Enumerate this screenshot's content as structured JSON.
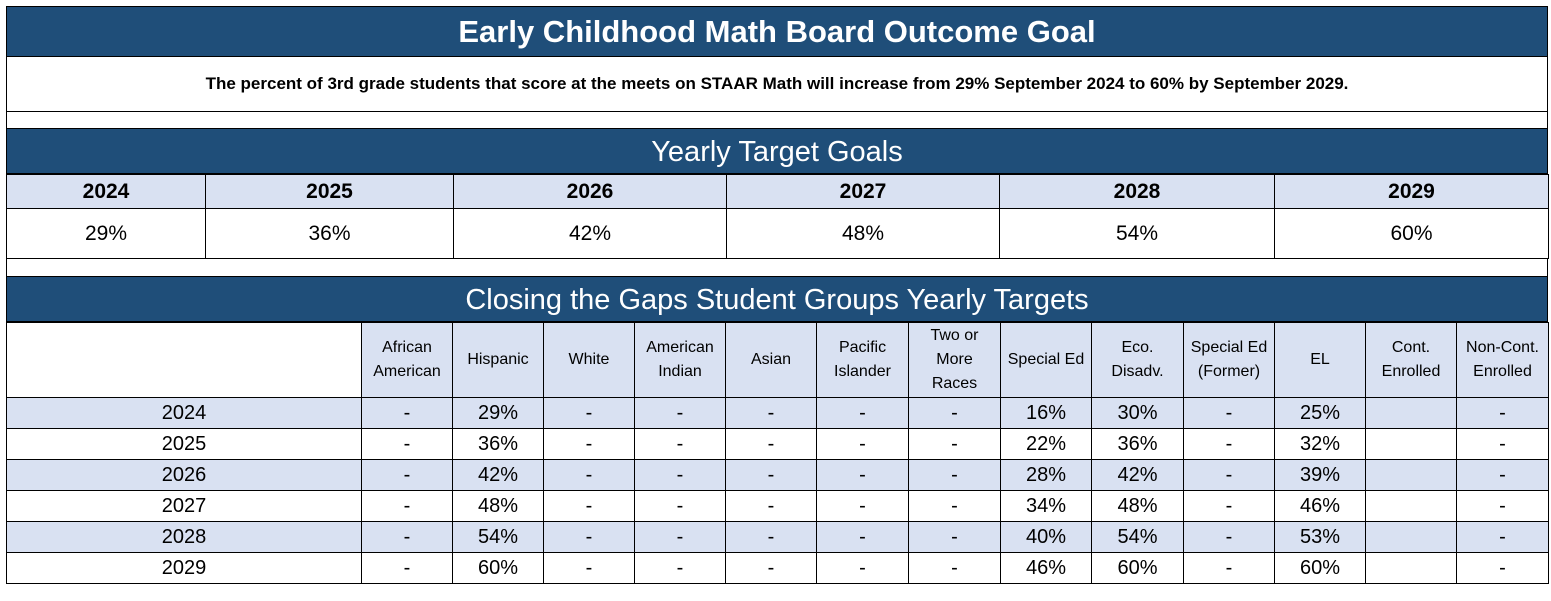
{
  "title": "Early Childhood Math Board Outcome Goal",
  "goal_statement": "The percent of 3rd grade students that score at the meets on STAAR Math will increase from 29% September 2024 to 60% by September 2029.",
  "yearly_targets": {
    "heading": "Yearly Target Goals",
    "years": [
      "2024",
      "2025",
      "2026",
      "2027",
      "2028",
      "2029"
    ],
    "values": [
      "29%",
      "36%",
      "42%",
      "48%",
      "54%",
      "60%"
    ]
  },
  "student_groups": {
    "heading": "Closing the Gaps Student Groups Yearly Targets",
    "columns": [
      [
        "African",
        "American"
      ],
      [
        "Hispanic"
      ],
      [
        "White"
      ],
      [
        "American",
        "Indian"
      ],
      [
        "Asian"
      ],
      [
        "Pacific",
        "Islander"
      ],
      [
        "Two or",
        "More",
        "Races"
      ],
      [
        "Special Ed"
      ],
      [
        "Eco.",
        "Disadv."
      ],
      [
        "Special  Ed",
        "(Former)"
      ],
      [
        "EL"
      ],
      [
        "Cont.",
        "Enrolled"
      ],
      [
        "Non-Cont.",
        "Enrolled"
      ]
    ],
    "rows": [
      {
        "year": "2024",
        "cells": [
          "-",
          "29%",
          "-",
          "-",
          "-",
          "-",
          "-",
          "16%",
          "30%",
          "-",
          "25%",
          "",
          "-"
        ]
      },
      {
        "year": "2025",
        "cells": [
          "-",
          "36%",
          "-",
          "-",
          "-",
          "-",
          "-",
          "22%",
          "36%",
          "-",
          "32%",
          "",
          "-"
        ]
      },
      {
        "year": "2026",
        "cells": [
          "-",
          "42%",
          "-",
          "-",
          "-",
          "-",
          "-",
          "28%",
          "42%",
          "-",
          "39%",
          "",
          "-"
        ]
      },
      {
        "year": "2027",
        "cells": [
          "-",
          "48%",
          "-",
          "-",
          "-",
          "-",
          "-",
          "34%",
          "48%",
          "-",
          "46%",
          "",
          "-"
        ]
      },
      {
        "year": "2028",
        "cells": [
          "-",
          "54%",
          "-",
          "-",
          "-",
          "-",
          "-",
          "40%",
          "54%",
          "-",
          "53%",
          "",
          "-"
        ]
      },
      {
        "year": "2029",
        "cells": [
          "-",
          "60%",
          "-",
          "-",
          "-",
          "-",
          "-",
          "46%",
          "60%",
          "-",
          "60%",
          "",
          "-"
        ]
      }
    ]
  },
  "colors": {
    "band": "#1f4e79",
    "shade": "#d9e1f2"
  }
}
